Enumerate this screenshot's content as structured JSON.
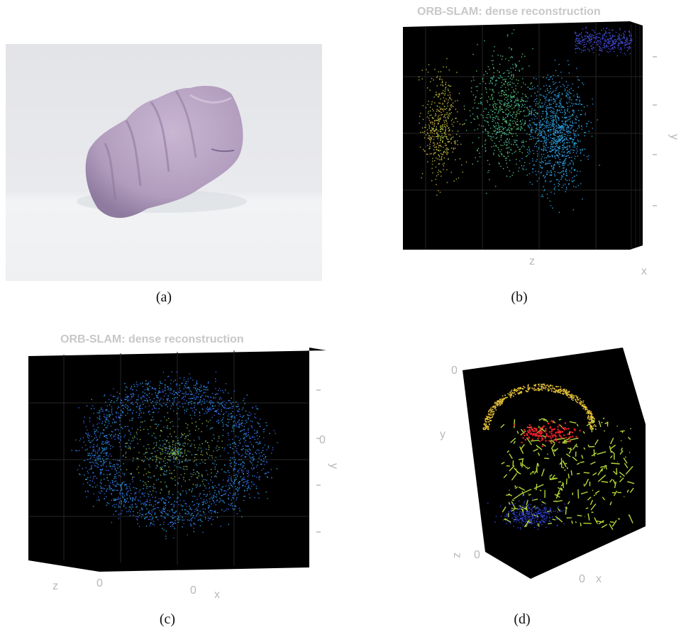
{
  "figure": {
    "panels": [
      {
        "id": "a",
        "caption": "(a)"
      },
      {
        "id": "b",
        "caption": "(b)",
        "title": "ORB-SLAM: dense reconstruction",
        "axis_labels": {
          "z": "z",
          "x": "x",
          "y": "y"
        }
      },
      {
        "id": "c",
        "caption": "(c)",
        "title": "ORB-SLAM: dense reconstruction",
        "axis_labels": {
          "z": "z",
          "x": "x",
          "y": "y"
        },
        "tick_labels": {
          "z0": "0",
          "x0": "0",
          "y0": "0"
        }
      },
      {
        "id": "d",
        "caption": "(d)",
        "axis_labels": {
          "y": "y",
          "z": "z",
          "x": "x"
        },
        "tick_labels": {
          "top0": "0",
          "z0": "0",
          "x0": "0"
        }
      }
    ]
  },
  "colors": {
    "mesh": "#b7a2c2",
    "mesh_shadow": "#8f7aa0",
    "plot_background": "#000000",
    "grid": "#2a2a2a",
    "mesh_green": "#b5d83a",
    "mesh_yellow": "#e8c33a",
    "points_red": "#e8202a",
    "points_blue": "#2d3ec8"
  }
}
